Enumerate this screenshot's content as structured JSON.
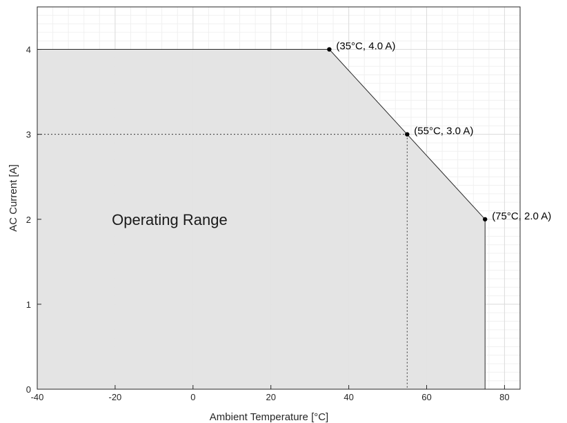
{
  "chart_data": {
    "type": "area",
    "title": "",
    "xlabel": "Ambient Temperature [°C]",
    "ylabel": "AC Current [A]",
    "xlim": [
      -40,
      84
    ],
    "ylim": [
      0,
      4.5
    ],
    "xticks": [
      -40,
      -20,
      0,
      20,
      40,
      60,
      80
    ],
    "yticks": [
      0,
      1,
      2,
      3,
      4
    ],
    "xtick_labels": [
      "-40",
      "-20",
      "0",
      "20",
      "40",
      "60",
      "80"
    ],
    "ytick_labels": [
      "0",
      "1",
      "2",
      "3",
      "4"
    ],
    "grid": true,
    "minor_grid": true,
    "legend": "none",
    "region_label": "Operating Range",
    "series": [
      {
        "x": [
          -40,
          35,
          55,
          75,
          75
        ],
        "y": [
          4.0,
          4.0,
          3.0,
          2.0,
          0
        ],
        "fill_color": "#e3e3e3",
        "line_color": "#262626"
      }
    ],
    "points": [
      {
        "x": 35,
        "y": 4.0,
        "label": "(35°C, 4.0 A)"
      },
      {
        "x": 55,
        "y": 3.0,
        "label": "(55°C, 3.0 A)"
      },
      {
        "x": 75,
        "y": 2.0,
        "label": "(75°C, 2.0 A)"
      }
    ],
    "reference_lines": [
      {
        "x": 55,
        "y": 3.0,
        "style": "dotted"
      }
    ]
  }
}
